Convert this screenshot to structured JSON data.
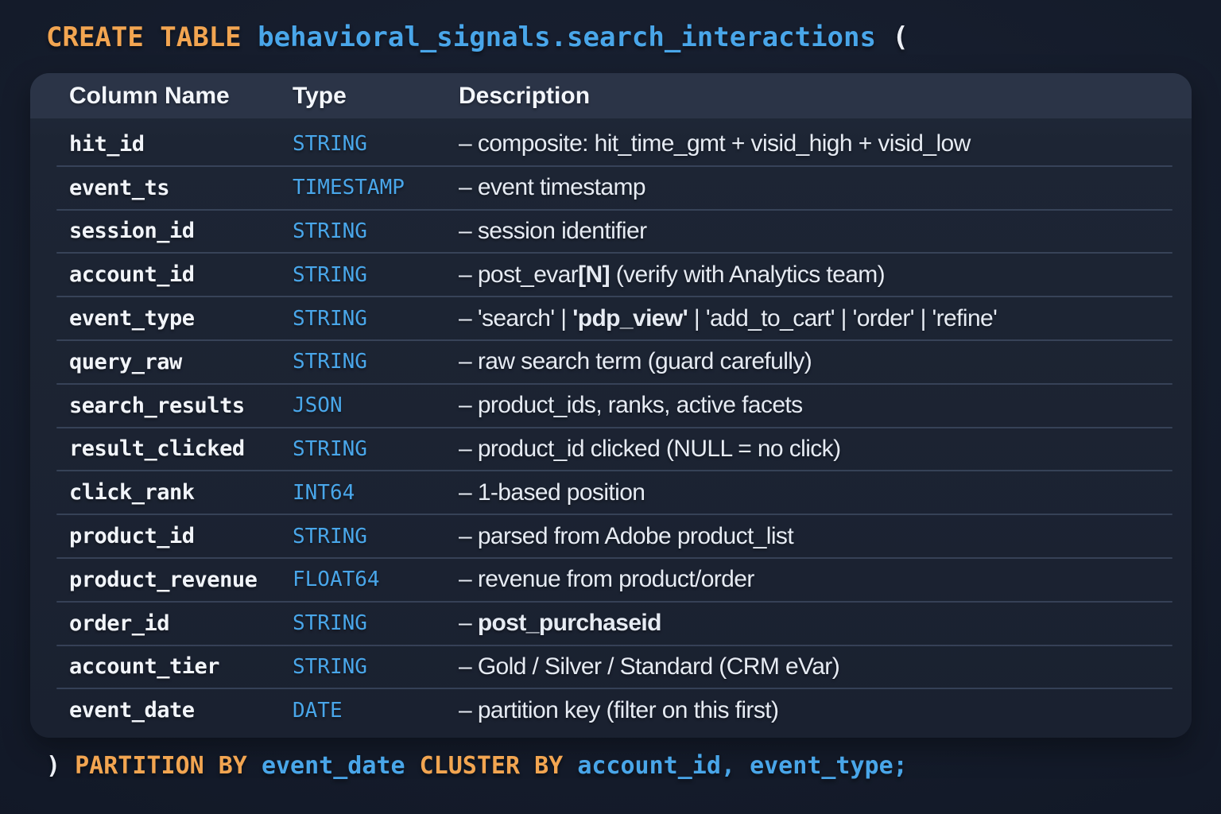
{
  "title": {
    "segments": [
      {
        "t": "CREATE TABLE ",
        "c": "orange"
      },
      {
        "t": "behavioral_signals.search_interactions",
        "c": "blue"
      },
      {
        "t": " (",
        "c": "white"
      }
    ]
  },
  "schema_table": {
    "headers": [
      "Column Name",
      "Type",
      "Description"
    ],
    "rows": [
      {
        "name": "hit_id",
        "type": "STRING",
        "desc": [
          {
            "t": "– composite: hit_time_gmt + visid_high + visid_low"
          }
        ]
      },
      {
        "name": "event_ts",
        "type": "TIMESTAMP",
        "desc": [
          {
            "t": "– event timestamp"
          }
        ]
      },
      {
        "name": "session_id",
        "type": "STRING",
        "desc": [
          {
            "t": "– session identifier"
          }
        ]
      },
      {
        "name": "account_id",
        "type": "STRING",
        "desc": [
          {
            "t": "– post_evar"
          },
          {
            "t": "[N]",
            "b": true
          },
          {
            "t": " (verify with Analytics team)"
          }
        ]
      },
      {
        "name": "event_type",
        "type": "STRING",
        "desc": [
          {
            "t": "– 'search' | "
          },
          {
            "t": "'pdp_view'",
            "b": true
          },
          {
            "t": " | 'add_to_cart' | 'order' | 'refine'"
          }
        ]
      },
      {
        "name": "query_raw",
        "type": "STRING",
        "desc": [
          {
            "t": "– raw search term (guard carefully)"
          }
        ]
      },
      {
        "name": "search_results",
        "type": "JSON",
        "desc": [
          {
            "t": "– product_ids, ranks, active facets"
          }
        ]
      },
      {
        "name": "result_clicked",
        "type": "STRING",
        "desc": [
          {
            "t": "– product_id clicked (NULL = no click)"
          }
        ]
      },
      {
        "name": "click_rank",
        "type": "INT64",
        "desc": [
          {
            "t": "– 1-based position"
          }
        ]
      },
      {
        "name": "product_id",
        "type": "STRING",
        "desc": [
          {
            "t": "– parsed from Adobe product_list"
          }
        ]
      },
      {
        "name": "product_revenue",
        "type": "FLOAT64",
        "desc": [
          {
            "t": "– revenue from product/order"
          }
        ]
      },
      {
        "name": "order_id",
        "type": "STRING",
        "desc": [
          {
            "t": "– "
          },
          {
            "t": "post_purchaseid",
            "b": true
          }
        ]
      },
      {
        "name": "account_tier",
        "type": "STRING",
        "desc": [
          {
            "t": "– Gold / Silver / Standard (CRM eVar)"
          }
        ]
      },
      {
        "name": "event_date",
        "type": "DATE",
        "desc": [
          {
            "t": "– partition key (filter on this first)"
          }
        ]
      }
    ]
  },
  "footer": {
    "segments": [
      {
        "t": ") ",
        "c": "white"
      },
      {
        "t": "PARTITION BY ",
        "c": "orange"
      },
      {
        "t": "event_date ",
        "c": "blue"
      },
      {
        "t": "CLUSTER BY ",
        "c": "orange"
      },
      {
        "t": "account_id",
        "c": "blue"
      },
      {
        "t": ", ",
        "c": "blue"
      },
      {
        "t": "event_type;",
        "c": "blue"
      }
    ]
  },
  "colors": {
    "accent_orange": "#f2a551",
    "accent_blue": "#49a6e9",
    "panel_bg": "#1d2534",
    "header_row_bg": "#2b3447",
    "page_bg": "#131a2a",
    "text": "#eceff5"
  }
}
